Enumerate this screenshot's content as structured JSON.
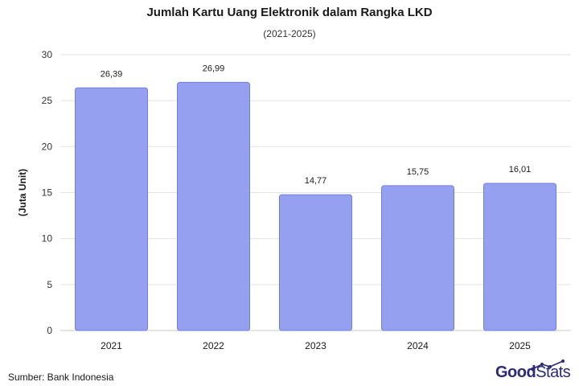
{
  "chart_data": {
    "type": "bar",
    "title": "Jumlah Kartu Uang Elektronik dalam Rangka LKD",
    "subtitle": "(2021-2025)",
    "ylabel": "(Juta Unit)",
    "xlabel": "",
    "categories": [
      "2021",
      "2022",
      "2023",
      "2024",
      "2025"
    ],
    "values": [
      26.39,
      26.99,
      14.77,
      15.75,
      16.01
    ],
    "data_labels": [
      "26,39",
      "26,99",
      "14,77",
      "15,75",
      "16,01"
    ],
    "ylim": [
      0,
      30
    ],
    "yticks": [
      0,
      5,
      10,
      15,
      20,
      25,
      30
    ],
    "grid": true,
    "legend": "none",
    "bar_color": "#95a1f0",
    "bar_edge_color": "#6f7fe0"
  },
  "footer": {
    "source": "Sumber: Bank Indonesia",
    "brand_part1": "Good",
    "brand_part2": "Stats"
  },
  "colors": {
    "brand": "#2b2a7a",
    "grid": "#e3e3e3"
  }
}
